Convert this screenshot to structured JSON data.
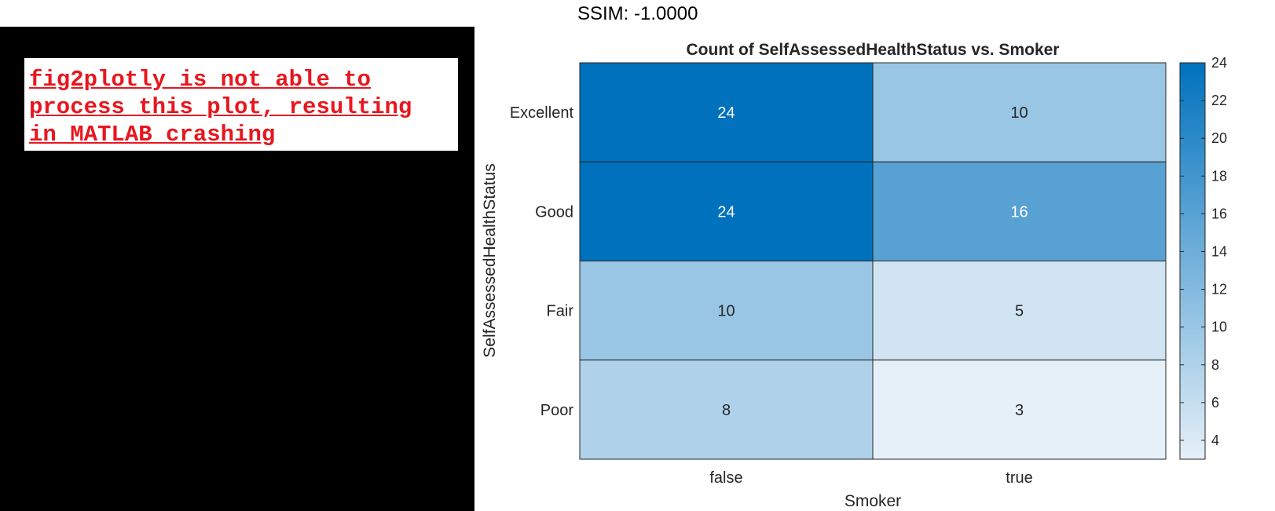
{
  "error_panel": {
    "lines": [
      "fig2plotly is not able to",
      "process this plot, resulting",
      "in MATLAB crashing"
    ],
    "text_color": "#e8161e"
  },
  "ssim_label": "SSIM: -1.0000",
  "chart_data": {
    "type": "heatmap",
    "title": "Count of SelfAssessedHealthStatus vs. Smoker",
    "xlabel": "Smoker",
    "ylabel": "SelfAssessedHealthStatus",
    "x_categories": [
      "false",
      "true"
    ],
    "y_categories": [
      "Excellent",
      "Good",
      "Fair",
      "Poor"
    ],
    "values": [
      [
        24,
        10
      ],
      [
        24,
        16
      ],
      [
        10,
        5
      ],
      [
        8,
        3
      ]
    ],
    "colorbar": {
      "min": 3,
      "max": 24,
      "ticks": [
        4,
        6,
        8,
        10,
        12,
        14,
        16,
        18,
        20,
        22,
        24
      ]
    },
    "colormap": {
      "low": "#e6f0f8",
      "high": "#0072bd"
    },
    "grid": false
  }
}
